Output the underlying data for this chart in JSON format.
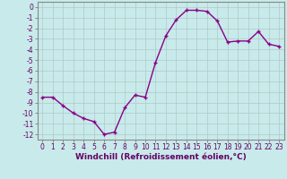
{
  "x": [
    0,
    1,
    2,
    3,
    4,
    5,
    6,
    7,
    8,
    9,
    10,
    11,
    12,
    13,
    14,
    15,
    16,
    17,
    18,
    19,
    20,
    21,
    22,
    23
  ],
  "y": [
    -8.5,
    -8.5,
    -9.3,
    -10.0,
    -10.5,
    -10.8,
    -12.0,
    -11.8,
    -9.5,
    -8.3,
    -8.5,
    -5.2,
    -2.7,
    -1.2,
    -0.3,
    -0.3,
    -0.4,
    -1.3,
    -3.3,
    -3.2,
    -3.2,
    -2.3,
    -3.5,
    -3.7
  ],
  "line_color": "#880088",
  "marker": "+",
  "bg_color": "#c8eaea",
  "grid_color": "#b0c8c8",
  "xlabel": "Windchill (Refroidissement éolien,°C)",
  "xlim_min": -0.5,
  "xlim_max": 23.5,
  "ylim_min": -12.5,
  "ylim_max": 0.5,
  "yticks": [
    0,
    -1,
    -2,
    -3,
    -4,
    -5,
    -6,
    -7,
    -8,
    -9,
    -10,
    -11,
    -12
  ],
  "xticks": [
    0,
    1,
    2,
    3,
    4,
    5,
    6,
    7,
    8,
    9,
    10,
    11,
    12,
    13,
    14,
    15,
    16,
    17,
    18,
    19,
    20,
    21,
    22,
    23
  ],
  "tick_fontsize": 5.5,
  "xlabel_fontsize": 6.5,
  "line_width": 1.0,
  "marker_size": 3.5
}
